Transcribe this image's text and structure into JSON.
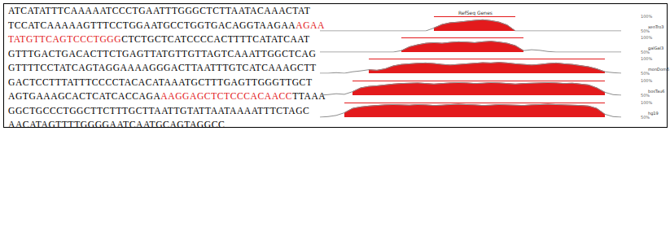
{
  "sequence": {
    "lines": [
      [
        {
          "text": "ATCATATTTCAAAAATCCCTGAATTTGGGCTCTTAATACAAACTAT",
          "highlight": false
        }
      ],
      [
        {
          "text": "TCCATCAAAAAGTTTCCTGGAATGCCTGGTGACAGGTAAGAA",
          "highlight": false
        },
        {
          "text": "AGAA",
          "highlight": true
        }
      ],
      [
        {
          "text": "TATGTTCAGTCCCTGGG",
          "highlight": true
        },
        {
          "text": "CTCTGCTCATCCCCACTTTTCATATCAAT",
          "highlight": false
        }
      ],
      [
        {
          "text": "GTTTGACTGACACTTCTGAGTTATGTTGTTAGTCAAATTGGCTCAG",
          "highlight": false
        }
      ],
      [
        {
          "text": "GTTTTCCTATCAGTAGGAAAAGGGACTTAATTTGTCATCAAAGCTT",
          "highlight": false
        }
      ],
      [
        {
          "text": "GACTCCTTTATTTCCCCTACACATAAATGCTTTGAGTTGGGTTGCT",
          "highlight": false
        }
      ],
      [
        {
          "text": "AGTGAAAGCACTCATCACCAGA",
          "highlight": false
        },
        {
          "text": "AAGGAGCTCTCCCACAACC",
          "highlight": true
        },
        {
          "text": "TTAAA",
          "highlight": false
        }
      ],
      [
        {
          "text": "GGCTGCCCTGGCTTCTTTGCTTAATTGTATTAATAAAATTTCTAGC",
          "highlight": false
        }
      ],
      [
        {
          "text": "AACATAGTTTTGGGGAATCAATGCAGTAGGCC",
          "highlight": false
        }
      ]
    ]
  },
  "chart_data": {
    "type": "line",
    "title": "RefSeq Genes",
    "x": [
      0,
      10,
      20,
      30,
      40,
      50,
      60,
      70,
      80,
      90,
      100,
      110,
      120,
      130,
      140,
      150,
      160,
      170,
      180,
      190,
      200,
      210,
      220,
      230,
      240,
      250,
      260,
      270,
      280,
      290,
      300,
      310,
      320,
      330,
      340,
      350,
      360,
      370
    ],
    "xlim": [
      0,
      370
    ],
    "ylim": [
      50,
      100
    ],
    "yticks": [
      {
        "value": 50,
        "label": "50%"
      },
      {
        "value": 100,
        "label": "100%"
      }
    ],
    "tick_labels": "y",
    "grid": false,
    "color": "#e31a1c",
    "series": [
      {
        "name": "xenTro3",
        "conserved": [
          140,
          240
        ],
        "color": "#8c8c8c",
        "values": [
          50,
          50,
          50,
          50,
          50,
          50,
          50,
          50,
          50,
          50,
          50,
          50,
          50,
          50,
          60,
          72,
          78,
          80,
          83,
          86,
          88,
          85,
          80,
          70,
          50,
          50,
          50,
          50,
          50,
          50,
          50,
          50,
          50,
          50,
          50,
          50,
          50,
          50
        ]
      },
      {
        "name": "galGal3",
        "conserved": [
          100,
          250
        ],
        "color": "#8c8c8c",
        "values": [
          50,
          50,
          50,
          50,
          50,
          50,
          50,
          50,
          50,
          50,
          55,
          68,
          75,
          80,
          82,
          80,
          83,
          85,
          84,
          82,
          85,
          87,
          84,
          80,
          72,
          55,
          58,
          56,
          52,
          50,
          50,
          50,
          50,
          50,
          50,
          50,
          50,
          50
        ]
      },
      {
        "name": "monDom5",
        "conserved": [
          60,
          350
        ],
        "color": "#8c8c8c",
        "values": [
          50,
          50,
          52,
          50,
          55,
          58,
          62,
          60,
          65,
          75,
          80,
          82,
          84,
          85,
          83,
          80,
          78,
          80,
          82,
          84,
          86,
          85,
          87,
          85,
          82,
          80,
          78,
          80,
          83,
          85,
          82,
          80,
          76,
          72,
          65,
          55,
          52,
          50
        ]
      },
      {
        "name": "bosTau6",
        "conserved": [
          40,
          350
        ],
        "color": "#8c8c8c",
        "values": [
          50,
          52,
          55,
          53,
          62,
          75,
          80,
          82,
          85,
          88,
          90,
          91,
          92,
          90,
          88,
          90,
          92,
          93,
          92,
          90,
          91,
          93,
          92,
          90,
          88,
          90,
          91,
          92,
          93,
          92,
          90,
          91,
          88,
          85,
          75,
          60,
          52,
          50
        ]
      },
      {
        "name": "hg19",
        "conserved": [
          30,
          350
        ],
        "color": "#8c8c8c",
        "values": [
          50,
          52,
          56,
          65,
          80,
          85,
          88,
          90,
          92,
          93,
          92,
          91,
          93,
          92,
          90,
          91,
          93,
          94,
          93,
          92,
          90,
          91,
          93,
          92,
          91,
          90,
          92,
          93,
          94,
          93,
          92,
          91,
          90,
          88,
          80,
          60,
          52,
          50
        ]
      }
    ]
  }
}
